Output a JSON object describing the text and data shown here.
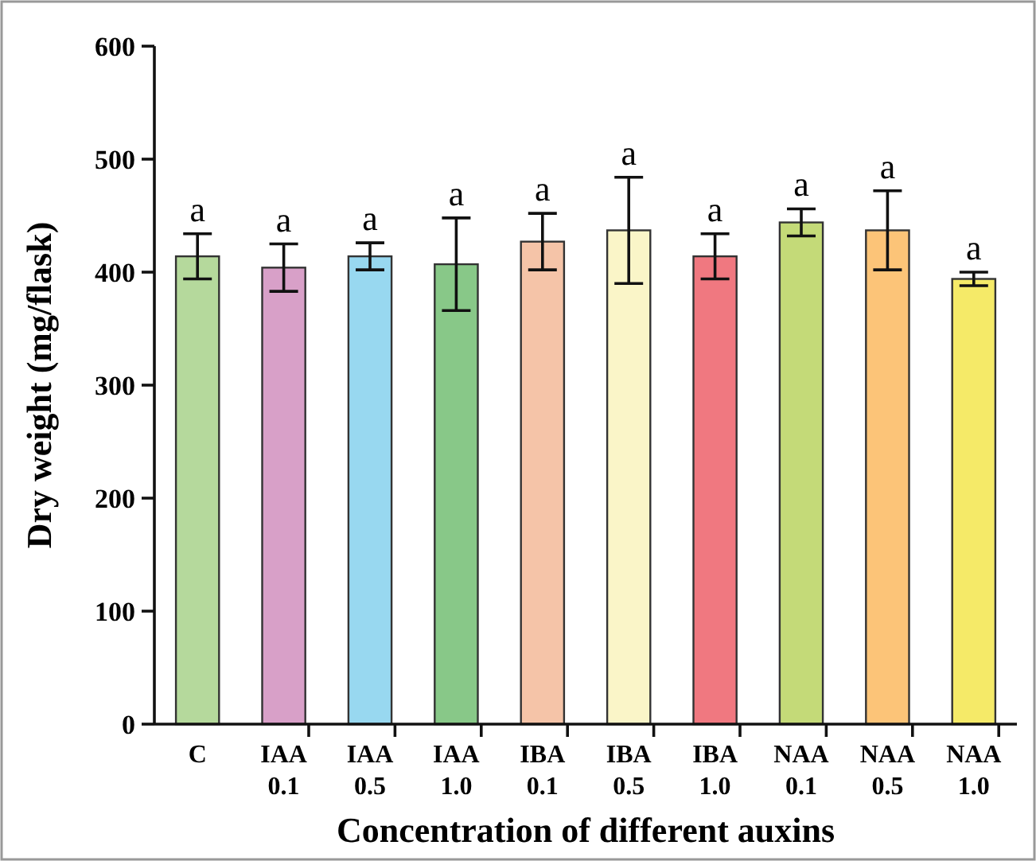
{
  "chart_data": {
    "type": "bar",
    "xlabel": "Concentration of different auxins",
    "ylabel": "Dry weight (mg/flask)",
    "categories": [
      "C",
      "IAA 0.1",
      "IAA 0.5",
      "IAA 1.0",
      "IBA 0.1",
      "IBA 0.5",
      "IBA 1.0",
      "NAA 0.1",
      "NAA 0.5",
      "NAA 1.0"
    ],
    "values": [
      414,
      404,
      414,
      407,
      427,
      437,
      414,
      444,
      437,
      394
    ],
    "errors": [
      20,
      21,
      12,
      41,
      25,
      47,
      20,
      12,
      35,
      6
    ],
    "colors": [
      "#b5d99c",
      "#d8a0c8",
      "#98d8f0",
      "#88c888",
      "#f5c4a8",
      "#faf5c8",
      "#f07880",
      "#c4da78",
      "#fcc478",
      "#f5ea68"
    ],
    "ylim": [
      0,
      600
    ],
    "yticks": [
      0,
      100,
      200,
      300,
      400,
      500,
      600
    ],
    "annotations": [
      "a",
      "a",
      "a",
      "a",
      "a",
      "a",
      "a",
      "a",
      "a",
      "a"
    ]
  }
}
